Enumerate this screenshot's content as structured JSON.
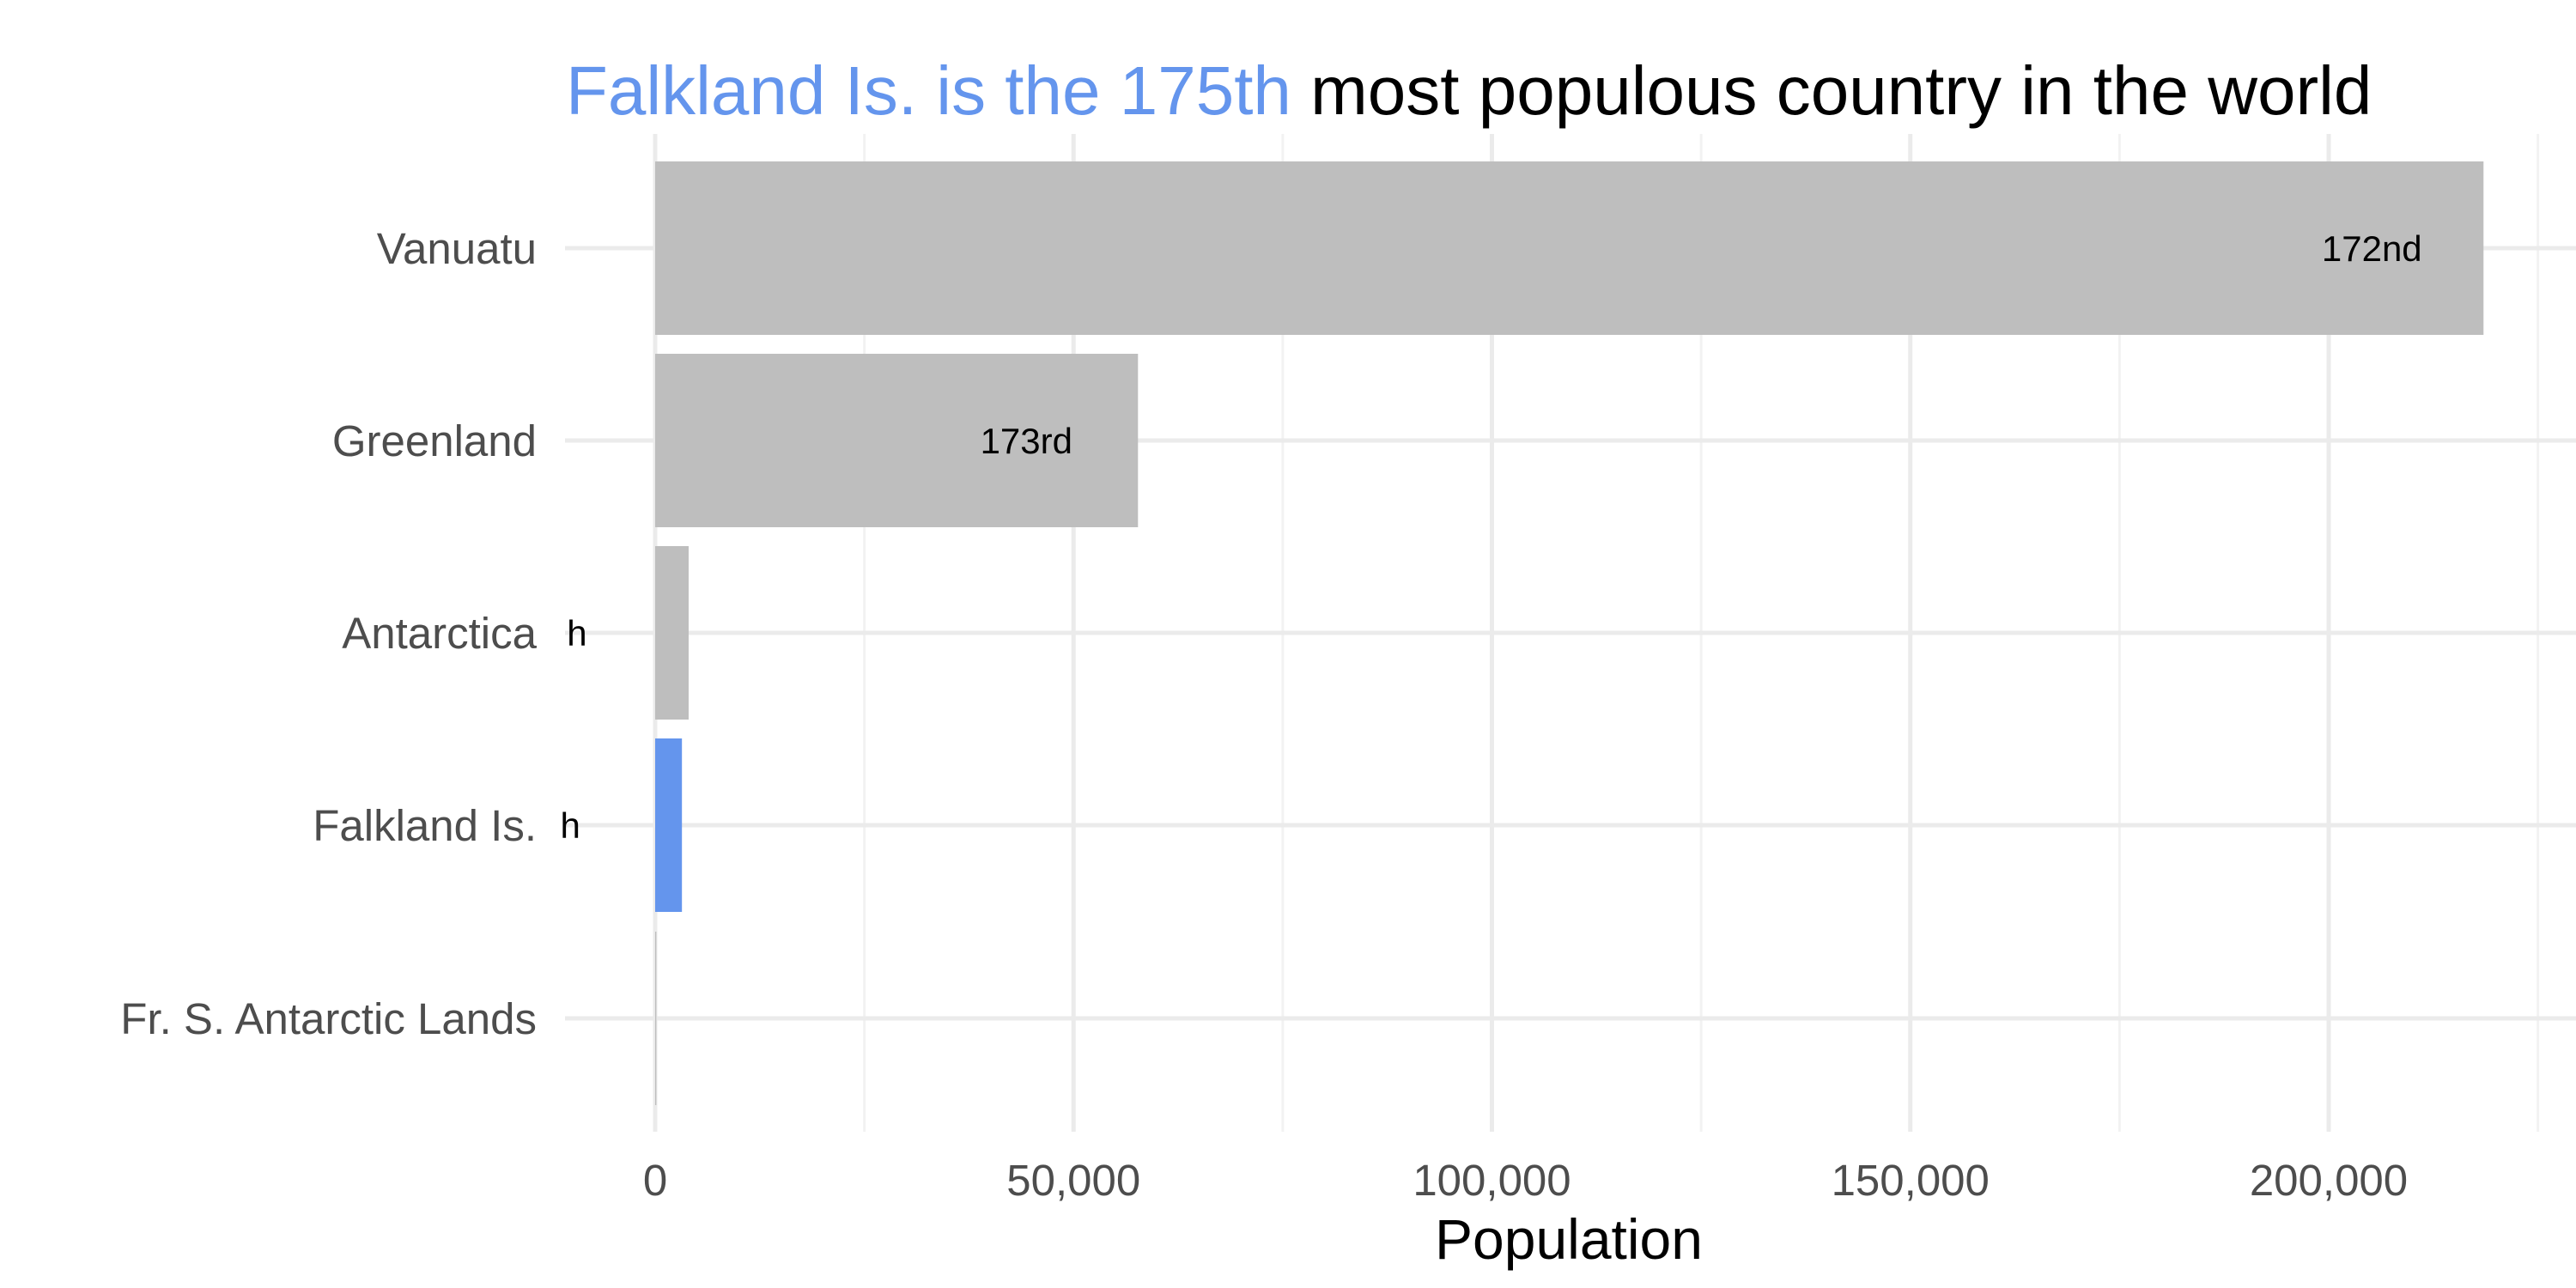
{
  "chart_data": {
    "type": "bar",
    "orientation": "horizontal",
    "title": {
      "highlight": "Falkland Is. is the 175th",
      "rest": " most populous country in the world"
    },
    "xlabel": "Population",
    "ylabel": "",
    "xlim": [
      0,
      225000
    ],
    "x_ticks": [
      0,
      50000,
      100000,
      150000,
      200000
    ],
    "x_tick_labels": [
      "0",
      "50,000",
      "100,000",
      "150,000",
      "200,000"
    ],
    "grid": true,
    "legend": "none",
    "categories": [
      "Vanuatu",
      "Greenland",
      "Antarctica",
      "Falkland Is.",
      "Fr. S. Antarctic Lands"
    ],
    "values": [
      218500,
      57700,
      4000,
      3200,
      140
    ],
    "bar_labels": [
      "172nd",
      "173rd",
      "h",
      "h",
      ""
    ],
    "highlight_category": "Falkland Is.",
    "colors": {
      "bar_default": "#bebebe",
      "bar_highlight": "#6495ed",
      "grid_major": "#ebebeb",
      "grid_minor": "#f2f2f2",
      "title_highlight": "#6495ed",
      "title_rest": "#000000"
    }
  }
}
